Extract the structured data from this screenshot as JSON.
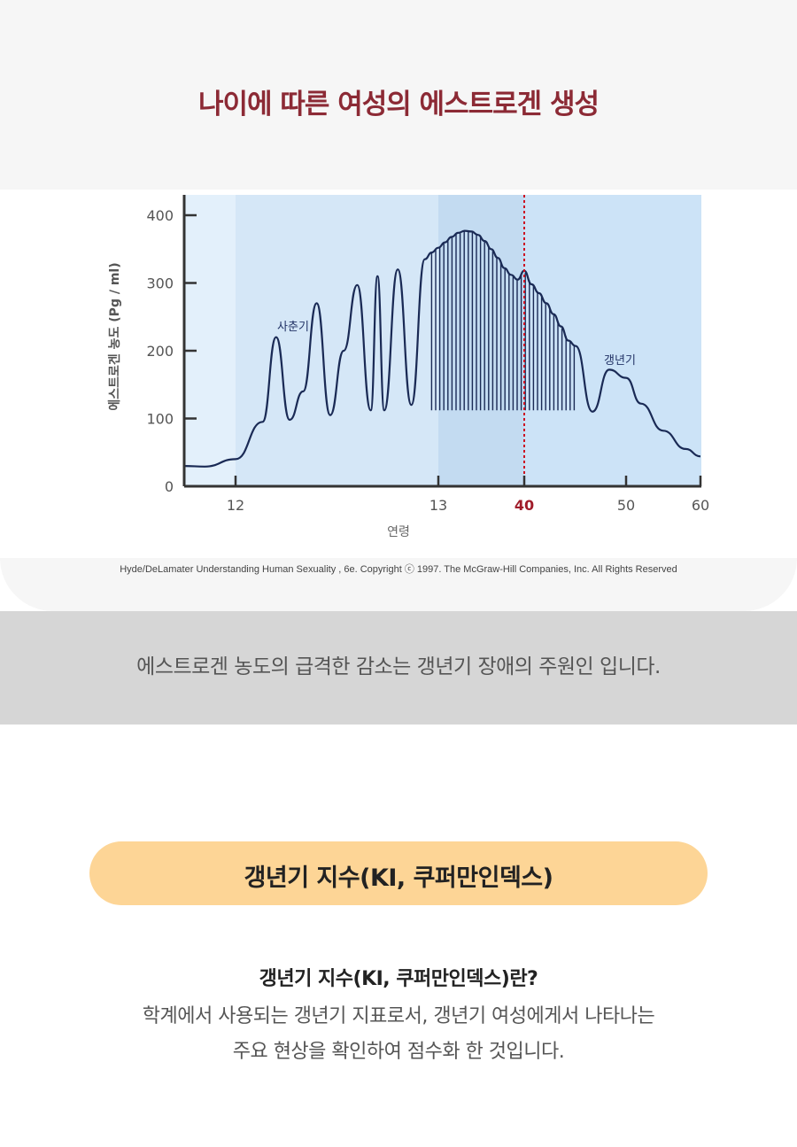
{
  "header": {
    "title": "나이에 따른 여성의 에스트로겐 생성"
  },
  "chart_data": {
    "type": "line",
    "ylabel": "에스트로겐 농도 (Pg / ml)",
    "xlabel": "연령",
    "y_ticks": [
      "400",
      "300",
      "200",
      "100",
      "0"
    ],
    "y_tick_values": [
      400,
      300,
      200,
      100,
      0
    ],
    "x_ticks": [
      "12",
      "13",
      "40",
      "50",
      "60"
    ],
    "highlight_tick": "40",
    "ylim": [
      0,
      420
    ],
    "annotations": {
      "puberty": "사춘기",
      "menopause": "갱년기"
    },
    "series": [
      {
        "x": [
          7,
          9,
          12,
          14,
          15,
          16,
          17,
          18,
          19,
          20,
          21,
          22,
          22.5,
          23,
          24,
          25,
          26,
          26.5,
          27,
          28,
          29,
          30,
          31,
          32,
          33,
          34,
          35,
          36,
          37,
          38,
          39,
          40,
          41,
          42,
          43,
          44,
          45,
          46,
          47,
          48,
          49,
          50,
          52,
          55,
          58,
          60
        ],
        "y": [
          30,
          29,
          40,
          95,
          220,
          98,
          140,
          270,
          105,
          200,
          297,
          112,
          310,
          112,
          320,
          120,
          335,
          345,
          352,
          360,
          368,
          374,
          377,
          376,
          371,
          362,
          350,
          337,
          322,
          312,
          305,
          318,
          298,
          285,
          270,
          254,
          236,
          215,
          207,
          110,
          172,
          160,
          122,
          82,
          55,
          44
        ]
      }
    ],
    "reference_line_x": 40,
    "colors": {
      "line": "#1a2a55",
      "background_left": "#e3f0fb",
      "background_mid": "#d5e7f7",
      "background_peak": "#c3dbf1",
      "background_right": "#cce3f7",
      "reference": "#cc1122",
      "axis": "#333333"
    }
  },
  "footer": {
    "copyright": "Hyde/DeLamater Understanding Human Sexuality , 6e. Copyright ⓒ 1997. The McGraw-Hill Companies, Inc. All Rights Reserved"
  },
  "band": {
    "text": "에스트로겐 농도의 급격한 감소는 갱년기 장애의 주원인 입니다."
  },
  "section": {
    "pill_title": "갱년기 지수(KI, 쿠퍼만인덱스)",
    "subtitle": "갱년기 지수(KI, 쿠퍼만인덱스)란?",
    "desc_line1": "학계에서 사용되는 갱년기 지표로서, 갱년기 여성에게서 나타나는",
    "desc_line2": "주요 현상을 확인하여 점수화 한 것입니다."
  }
}
